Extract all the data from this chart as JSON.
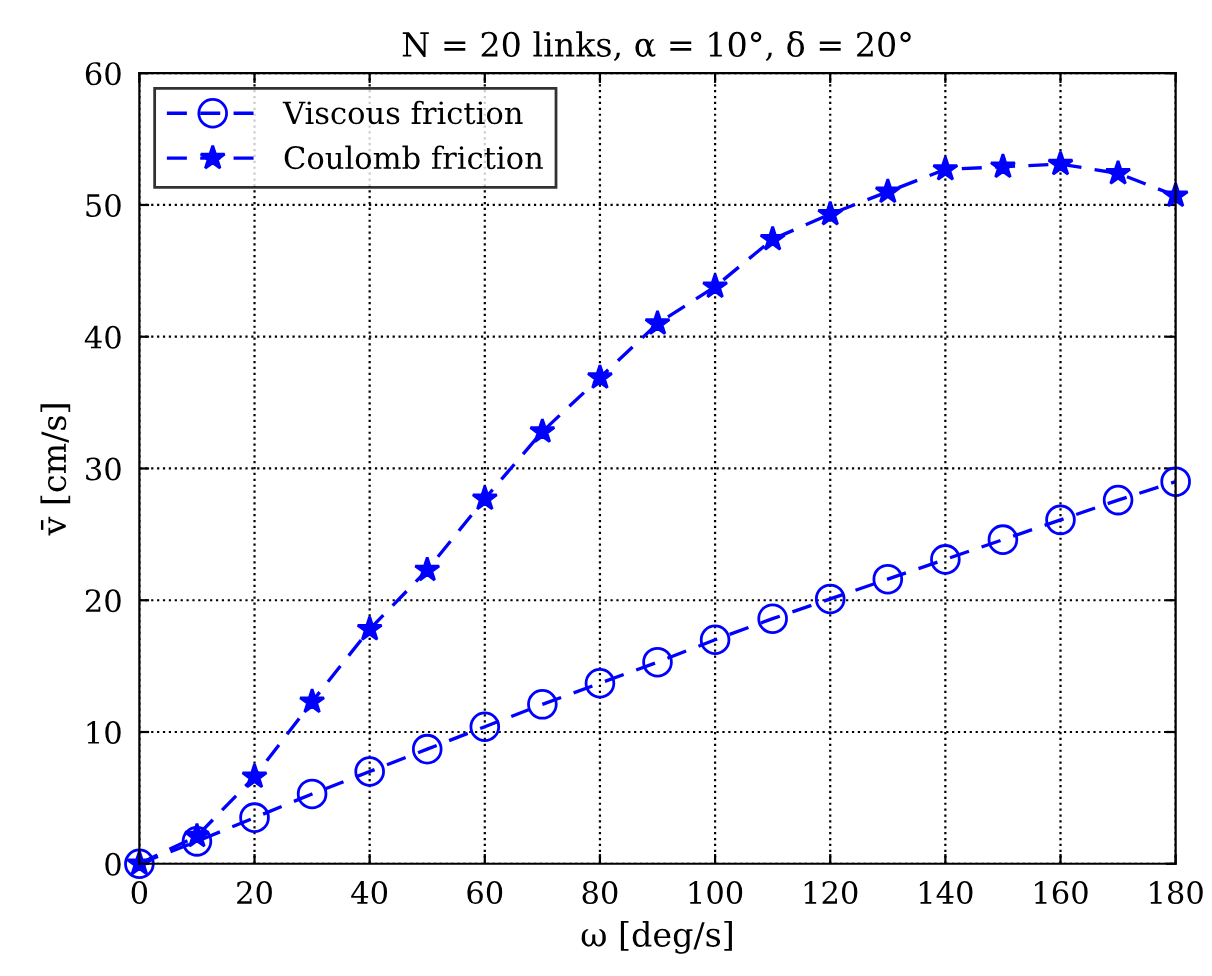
{
  "chart_data": {
    "type": "line",
    "title": "N = 20 links, α = 10°, δ = 20°",
    "xlabel": "ω [deg/s]",
    "ylabel": "v̄ [cm/s]",
    "x": [
      0,
      10,
      20,
      30,
      40,
      50,
      60,
      70,
      80,
      90,
      100,
      110,
      120,
      130,
      140,
      150,
      160,
      170,
      180
    ],
    "series": [
      {
        "name": "Viscous friction",
        "color": "#0000ff",
        "marker": "circle",
        "line_style": "dashed",
        "values": [
          0,
          1.7,
          3.5,
          5.3,
          7.0,
          8.7,
          10.4,
          12.1,
          13.7,
          15.3,
          17.0,
          18.6,
          20.1,
          21.6,
          23.1,
          24.6,
          26.1,
          27.6,
          29.0
        ]
      },
      {
        "name": "Coulomb friction",
        "color": "#0000ff",
        "marker": "star",
        "line_style": "dashed",
        "values": [
          0,
          2.1,
          6.6,
          12.3,
          17.8,
          22.3,
          27.7,
          32.8,
          36.9,
          41.0,
          43.8,
          47.4,
          49.3,
          51.0,
          52.7,
          52.9,
          53.1,
          52.4,
          50.7
        ]
      }
    ],
    "xlim": [
      0,
      180
    ],
    "xticks": [
      0,
      20,
      40,
      60,
      80,
      100,
      120,
      140,
      160,
      180
    ],
    "ylim": [
      0,
      60
    ],
    "yticks": [
      0,
      10,
      20,
      30,
      40,
      50,
      60
    ],
    "grid": true,
    "legend": "top left"
  }
}
